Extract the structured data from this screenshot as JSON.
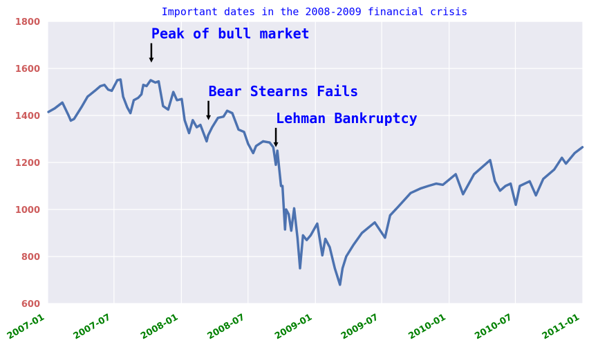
{
  "chart_data": {
    "type": "line",
    "title": "Important dates in the 2008-2009 financial crisis",
    "xlabel": "",
    "ylabel": "",
    "xlim": [
      "2007-01-01",
      "2011-01-01"
    ],
    "ylim": [
      600,
      1800
    ],
    "grid": true,
    "yticks": [
      600,
      800,
      1000,
      1200,
      1400,
      1600,
      1800
    ],
    "yticklabels": [
      "600",
      "800",
      "1000",
      "1200",
      "1400",
      "1600",
      "1800"
    ],
    "xticks": [
      "2007-01-01",
      "2007-07-01",
      "2008-01-01",
      "2008-07-01",
      "2009-01-01",
      "2009-07-01",
      "2010-01-01",
      "2010-07-01",
      "2011-01-01"
    ],
    "xticklabels": [
      "2007-01",
      "2007-07",
      "2008-01",
      "2008-07",
      "2009-01",
      "2009-07",
      "2010-01",
      "2010-07",
      "2011-01"
    ],
    "line_color": "#4c72b0",
    "series": [
      {
        "x": [
          "2007-01-03",
          "2007-01-20",
          "2007-02-10",
          "2007-02-27",
          "2007-03-05",
          "2007-03-14",
          "2007-04-05",
          "2007-04-20",
          "2007-05-10",
          "2007-05-25",
          "2007-06-05",
          "2007-06-15",
          "2007-06-25",
          "2007-07-10",
          "2007-07-19",
          "2007-07-26",
          "2007-08-06",
          "2007-08-15",
          "2007-08-24",
          "2007-09-05",
          "2007-09-14",
          "2007-09-19",
          "2007-09-28",
          "2007-10-09",
          "2007-10-22",
          "2007-10-31",
          "2007-11-12",
          "2007-11-26",
          "2007-12-10",
          "2007-12-20",
          "2008-01-02",
          "2008-01-10",
          "2008-01-22",
          "2008-02-01",
          "2008-02-12",
          "2008-02-22",
          "2008-03-10",
          "2008-03-14",
          "2008-03-25",
          "2008-04-10",
          "2008-04-25",
          "2008-05-05",
          "2008-05-19",
          "2008-06-05",
          "2008-06-20",
          "2008-07-01",
          "2008-07-15",
          "2008-07-23",
          "2008-08-11",
          "2008-08-29",
          "2008-09-08",
          "2008-09-15",
          "2008-09-19",
          "2008-09-29",
          "2008-10-03",
          "2008-10-10",
          "2008-10-13",
          "2008-10-20",
          "2008-10-27",
          "2008-11-04",
          "2008-11-13",
          "2008-11-20",
          "2008-11-28",
          "2008-12-08",
          "2008-12-19",
          "2009-01-06",
          "2009-01-20",
          "2009-01-28",
          "2009-02-09",
          "2009-02-23",
          "2009-03-09",
          "2009-03-16",
          "2009-03-26",
          "2009-04-15",
          "2009-05-08",
          "2009-06-12",
          "2009-07-10",
          "2009-07-24",
          "2009-08-14",
          "2009-09-18",
          "2009-10-16",
          "2009-11-05",
          "2009-11-27",
          "2009-12-15",
          "2010-01-19",
          "2010-02-08",
          "2010-03-10",
          "2010-04-23",
          "2010-05-06",
          "2010-05-20",
          "2010-06-04",
          "2010-06-18",
          "2010-07-02",
          "2010-07-13",
          "2010-08-09",
          "2010-08-26",
          "2010-09-15",
          "2010-10-15",
          "2010-11-05",
          "2010-11-16",
          "2010-12-10",
          "2010-12-31"
        ],
        "y": [
          1415,
          1430,
          1455,
          1400,
          1378,
          1385,
          1440,
          1480,
          1505,
          1525,
          1530,
          1510,
          1505,
          1550,
          1553,
          1480,
          1435,
          1410,
          1465,
          1475,
          1490,
          1530,
          1525,
          1550,
          1540,
          1545,
          1440,
          1425,
          1500,
          1465,
          1470,
          1380,
          1325,
          1380,
          1350,
          1360,
          1290,
          1315,
          1350,
          1390,
          1395,
          1420,
          1410,
          1340,
          1330,
          1280,
          1240,
          1270,
          1290,
          1285,
          1265,
          1190,
          1250,
          1100,
          1100,
          915,
          1000,
          980,
          910,
          1005,
          880,
          750,
          890,
          870,
          890,
          940,
          805,
          875,
          840,
          750,
          680,
          750,
          800,
          850,
          900,
          945,
          880,
          975,
          1010,
          1070,
          1090,
          1100,
          1110,
          1105,
          1150,
          1065,
          1150,
          1210,
          1120,
          1080,
          1100,
          1110,
          1020,
          1100,
          1120,
          1060,
          1130,
          1170,
          1220,
          1195,
          1240,
          1265
        ]
      }
    ],
    "annotations": [
      {
        "text": "Peak of bull market",
        "date": "2007-10-11",
        "value": 1625
      },
      {
        "text": "Bear Stearns Fails",
        "date": "2008-03-15",
        "value": 1380
      },
      {
        "text": "Lehman Bankruptcy",
        "date": "2008-09-15",
        "value": 1265
      }
    ]
  }
}
